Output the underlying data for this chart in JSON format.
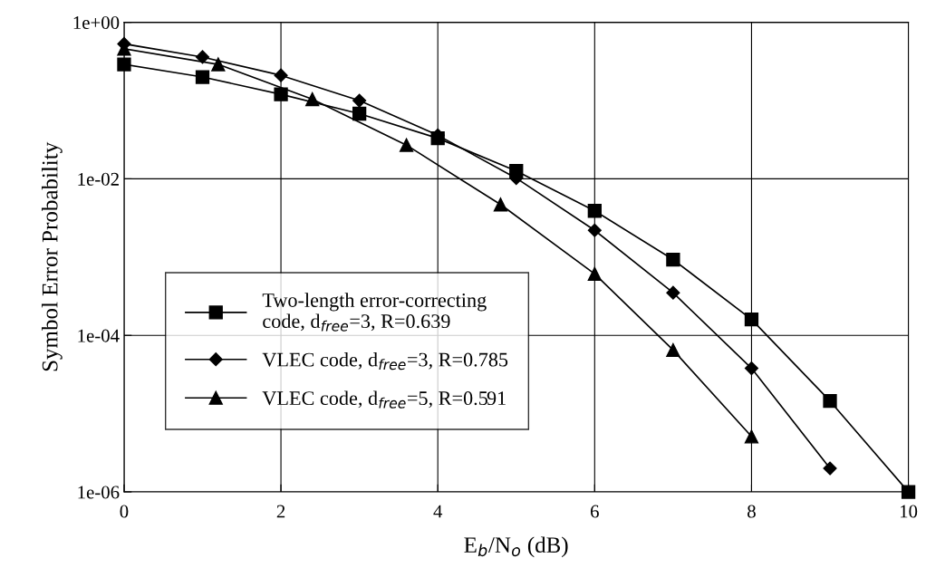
{
  "chart_data": {
    "type": "line",
    "xlabel": "E$_{b}$/N$_{o}$ (dB)",
    "ylabel": "Symbol Error Probability",
    "log": "y",
    "xlim": [
      0,
      10
    ],
    "xticks": [
      0,
      2,
      4,
      6,
      8,
      10
    ],
    "ylim": [
      1e-06,
      1
    ],
    "yticks": [
      {
        "value": 1e-06,
        "label": "1e-06"
      },
      {
        "value": 0.0001,
        "label": "1e-04"
      },
      {
        "value": 0.01,
        "label": "1e-02"
      },
      {
        "value": 1,
        "label": "1e+00"
      }
    ],
    "grid": true,
    "legend": "left",
    "line_style": "solid",
    "series": [
      {
        "name": "Two-length error-correcting\ncode, d$_{free}$=3, R=0.639",
        "color": "#000000",
        "marker": "square",
        "x": [
          0,
          1,
          2,
          3,
          4,
          5,
          6,
          7,
          8,
          9,
          10
        ],
        "values": [
          0.29,
          0.2,
          0.12,
          0.068,
          0.033,
          0.0126,
          0.0039,
          0.00093,
          0.00016,
          1.45e-05,
          1e-06
        ]
      },
      {
        "name": "VLEC code, d$_{free}$=3, R=0.785",
        "color": "#000000",
        "marker": "diamond",
        "x": [
          0,
          1,
          2,
          3,
          4,
          5,
          6,
          7,
          8,
          9
        ],
        "values": [
          0.53,
          0.36,
          0.21,
          0.1,
          0.036,
          0.0102,
          0.0022,
          0.00035,
          3.8e-05,
          2e-06
        ]
      },
      {
        "name": "VLEC code, d$_{free}$=5, R=0.591",
        "color": "#000000",
        "marker": "triangle",
        "x": [
          0,
          1.2,
          2.4,
          3.6,
          4.8,
          6,
          7,
          8
        ],
        "values": [
          0.46,
          0.29,
          0.104,
          0.027,
          0.0047,
          0.00061,
          6.5e-05,
          5.1e-06
        ]
      }
    ]
  }
}
